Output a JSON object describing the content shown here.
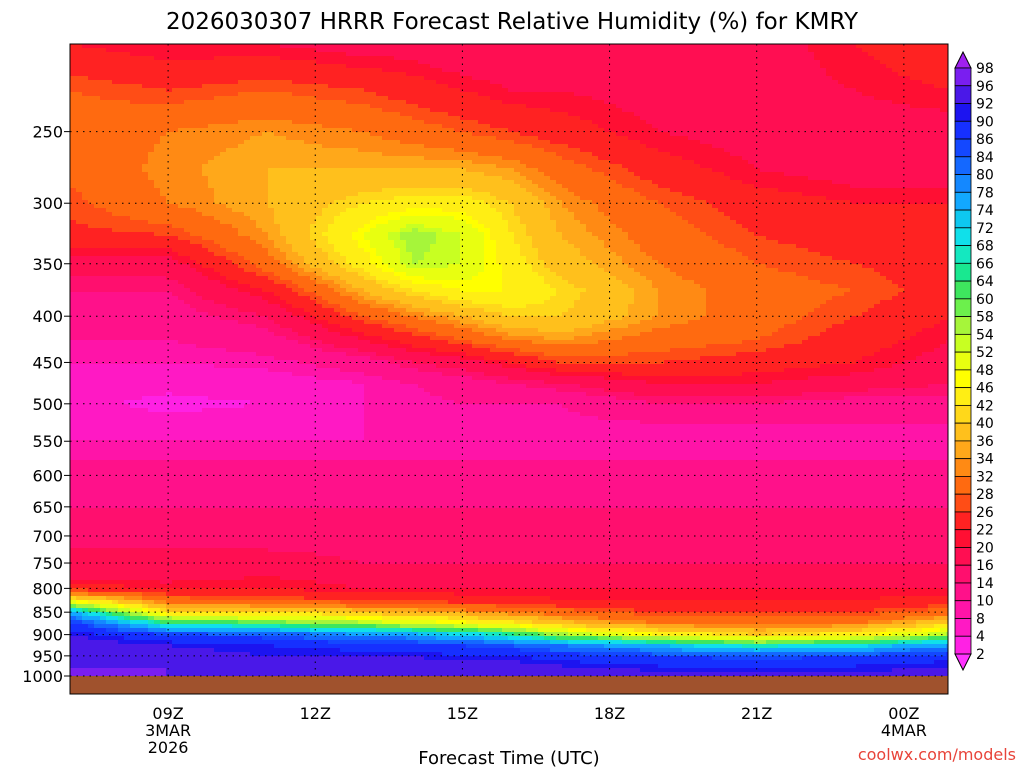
{
  "chart_data": {
    "type": "heatmap",
    "title": "2026030307 HRRR Forecast Relative Humidity (%) for KMRY",
    "xlabel": "Forecast Time (UTC)",
    "ylabel": "",
    "y_scale": "log",
    "y_reversed": true,
    "x_ticks": [
      {
        "hour": 9,
        "lines": [
          "09Z",
          "3MAR",
          "2026"
        ]
      },
      {
        "hour": 12,
        "lines": [
          "12Z"
        ]
      },
      {
        "hour": 15,
        "lines": [
          "15Z"
        ]
      },
      {
        "hour": 18,
        "lines": [
          "18Z"
        ]
      },
      {
        "hour": 21,
        "lines": [
          "21Z"
        ]
      },
      {
        "hour": 24,
        "lines": [
          "00Z",
          "4MAR"
        ]
      }
    ],
    "x_range_hours": [
      7.0,
      24.9
    ],
    "y_ticks": [
      250,
      300,
      350,
      400,
      450,
      500,
      550,
      600,
      650,
      700,
      750,
      800,
      850,
      900,
      950,
      1000
    ],
    "y_range_hpa": [
      200,
      1000
    ],
    "colorbar": {
      "levels": [
        2,
        4,
        8,
        10,
        14,
        16,
        20,
        22,
        26,
        28,
        32,
        34,
        36,
        40,
        42,
        46,
        48,
        52,
        54,
        58,
        60,
        64,
        66,
        68,
        72,
        74,
        78,
        80,
        84,
        86,
        90,
        92,
        96,
        98
      ],
      "colors": [
        "#ff33ff",
        "#ff21e4",
        "#ff19c4",
        "#ff14a8",
        "#ff118a",
        "#ff0f6e",
        "#ff0e52",
        "#ff0f33",
        "#ff2222",
        "#ff4d16",
        "#ff6a10",
        "#ff8a14",
        "#ffa81a",
        "#ffc01c",
        "#ffd81a",
        "#ffee14",
        "#ffff00",
        "#e8ff10",
        "#c8ff22",
        "#a6f53a",
        "#6cf04c",
        "#3ee65e",
        "#19e890",
        "#14e8c0",
        "#10e0ea",
        "#0ec8f0",
        "#12a8ff",
        "#1488ff",
        "#1468ff",
        "#1448ff",
        "#1630ff",
        "#1c14f0",
        "#4a18e8",
        "#7a1ef0",
        "#a020f0"
      ]
    },
    "rh_profiles": {
      "pressure_levels": [
        200,
        225,
        250,
        275,
        300,
        325,
        350,
        375,
        400,
        425,
        450,
        475,
        500,
        525,
        550,
        575,
        600,
        650,
        700,
        750,
        775,
        800,
        825,
        850,
        875,
        900,
        925,
        950,
        975,
        1000
      ],
      "columns": [
        {
          "hour": 7,
          "rh": [
            22,
            28,
            30,
            29,
            27,
            25,
            18,
            14,
            12,
            10,
            8,
            6,
            5,
            6,
            8,
            10,
            12,
            14,
            14,
            18,
            18,
            24,
            45,
            75,
            88,
            92,
            95,
            96,
            96,
            96
          ]
        },
        {
          "hour": 9,
          "rh": [
            20,
            26,
            32,
            33,
            32,
            26,
            18,
            14,
            12,
            10,
            8,
            5,
            3,
            5,
            8,
            10,
            12,
            14,
            14,
            18,
            18,
            22,
            30,
            42,
            66,
            86,
            92,
            94,
            96,
            96
          ]
        },
        {
          "hour": 11,
          "rh": [
            20,
            28,
            34,
            36,
            36,
            34,
            30,
            22,
            16,
            12,
            9,
            6,
            4,
            6,
            8,
            10,
            12,
            14,
            14,
            18,
            20,
            22,
            28,
            40,
            62,
            84,
            90,
            92,
            94,
            96
          ]
        },
        {
          "hour": 13,
          "rh": [
            18,
            26,
            32,
            36,
            42,
            48,
            44,
            36,
            28,
            20,
            12,
            8,
            8,
            8,
            8,
            10,
            12,
            14,
            14,
            16,
            18,
            20,
            26,
            38,
            56,
            78,
            88,
            92,
            94,
            96
          ]
        },
        {
          "hour": 14,
          "rh": [
            18,
            24,
            30,
            36,
            44,
            56,
            54,
            42,
            32,
            24,
            16,
            10,
            9,
            8,
            8,
            10,
            12,
            14,
            14,
            16,
            18,
            20,
            26,
            36,
            52,
            76,
            88,
            92,
            94,
            96
          ]
        },
        {
          "hour": 15,
          "rh": [
            16,
            22,
            28,
            36,
            44,
            52,
            52,
            46,
            36,
            28,
            18,
            12,
            10,
            9,
            9,
            10,
            12,
            14,
            14,
            16,
            18,
            20,
            24,
            34,
            48,
            72,
            86,
            90,
            94,
            96
          ]
        },
        {
          "hour": 16,
          "rh": [
            16,
            20,
            26,
            34,
            40,
            42,
            44,
            46,
            40,
            32,
            22,
            14,
            10,
            9,
            9,
            10,
            12,
            14,
            14,
            16,
            18,
            20,
            24,
            32,
            44,
            66,
            84,
            90,
            94,
            96
          ]
        },
        {
          "hour": 17,
          "rh": [
            18,
            20,
            24,
            30,
            34,
            36,
            38,
            42,
            40,
            34,
            26,
            16,
            10,
            9,
            9,
            10,
            12,
            14,
            14,
            16,
            18,
            20,
            22,
            30,
            38,
            56,
            80,
            88,
            92,
            96
          ]
        },
        {
          "hour": 19,
          "rh": [
            18,
            18,
            20,
            24,
            28,
            30,
            32,
            34,
            34,
            30,
            26,
            20,
            14,
            10,
            9,
            10,
            12,
            14,
            14,
            16,
            18,
            20,
            22,
            26,
            32,
            46,
            74,
            86,
            90,
            94
          ]
        },
        {
          "hour": 21,
          "rh": [
            18,
            18,
            18,
            20,
            24,
            26,
            28,
            30,
            30,
            28,
            24,
            20,
            14,
            10,
            9,
            10,
            12,
            14,
            14,
            16,
            18,
            20,
            22,
            26,
            30,
            40,
            66,
            84,
            90,
            94
          ]
        },
        {
          "hour": 23,
          "rh": [
            22,
            20,
            18,
            18,
            22,
            24,
            26,
            28,
            26,
            24,
            22,
            18,
            12,
            10,
            9,
            10,
            12,
            14,
            14,
            16,
            18,
            20,
            22,
            26,
            32,
            44,
            70,
            86,
            90,
            94
          ]
        },
        {
          "hour": 25,
          "rh": [
            26,
            22,
            18,
            18,
            22,
            24,
            24,
            24,
            22,
            20,
            18,
            16,
            12,
            10,
            9,
            10,
            12,
            14,
            14,
            16,
            18,
            20,
            24,
            30,
            40,
            56,
            78,
            88,
            92,
            94
          ]
        }
      ]
    },
    "surface_band_color": "#a0522d",
    "credit": "coolwx.com/models"
  }
}
